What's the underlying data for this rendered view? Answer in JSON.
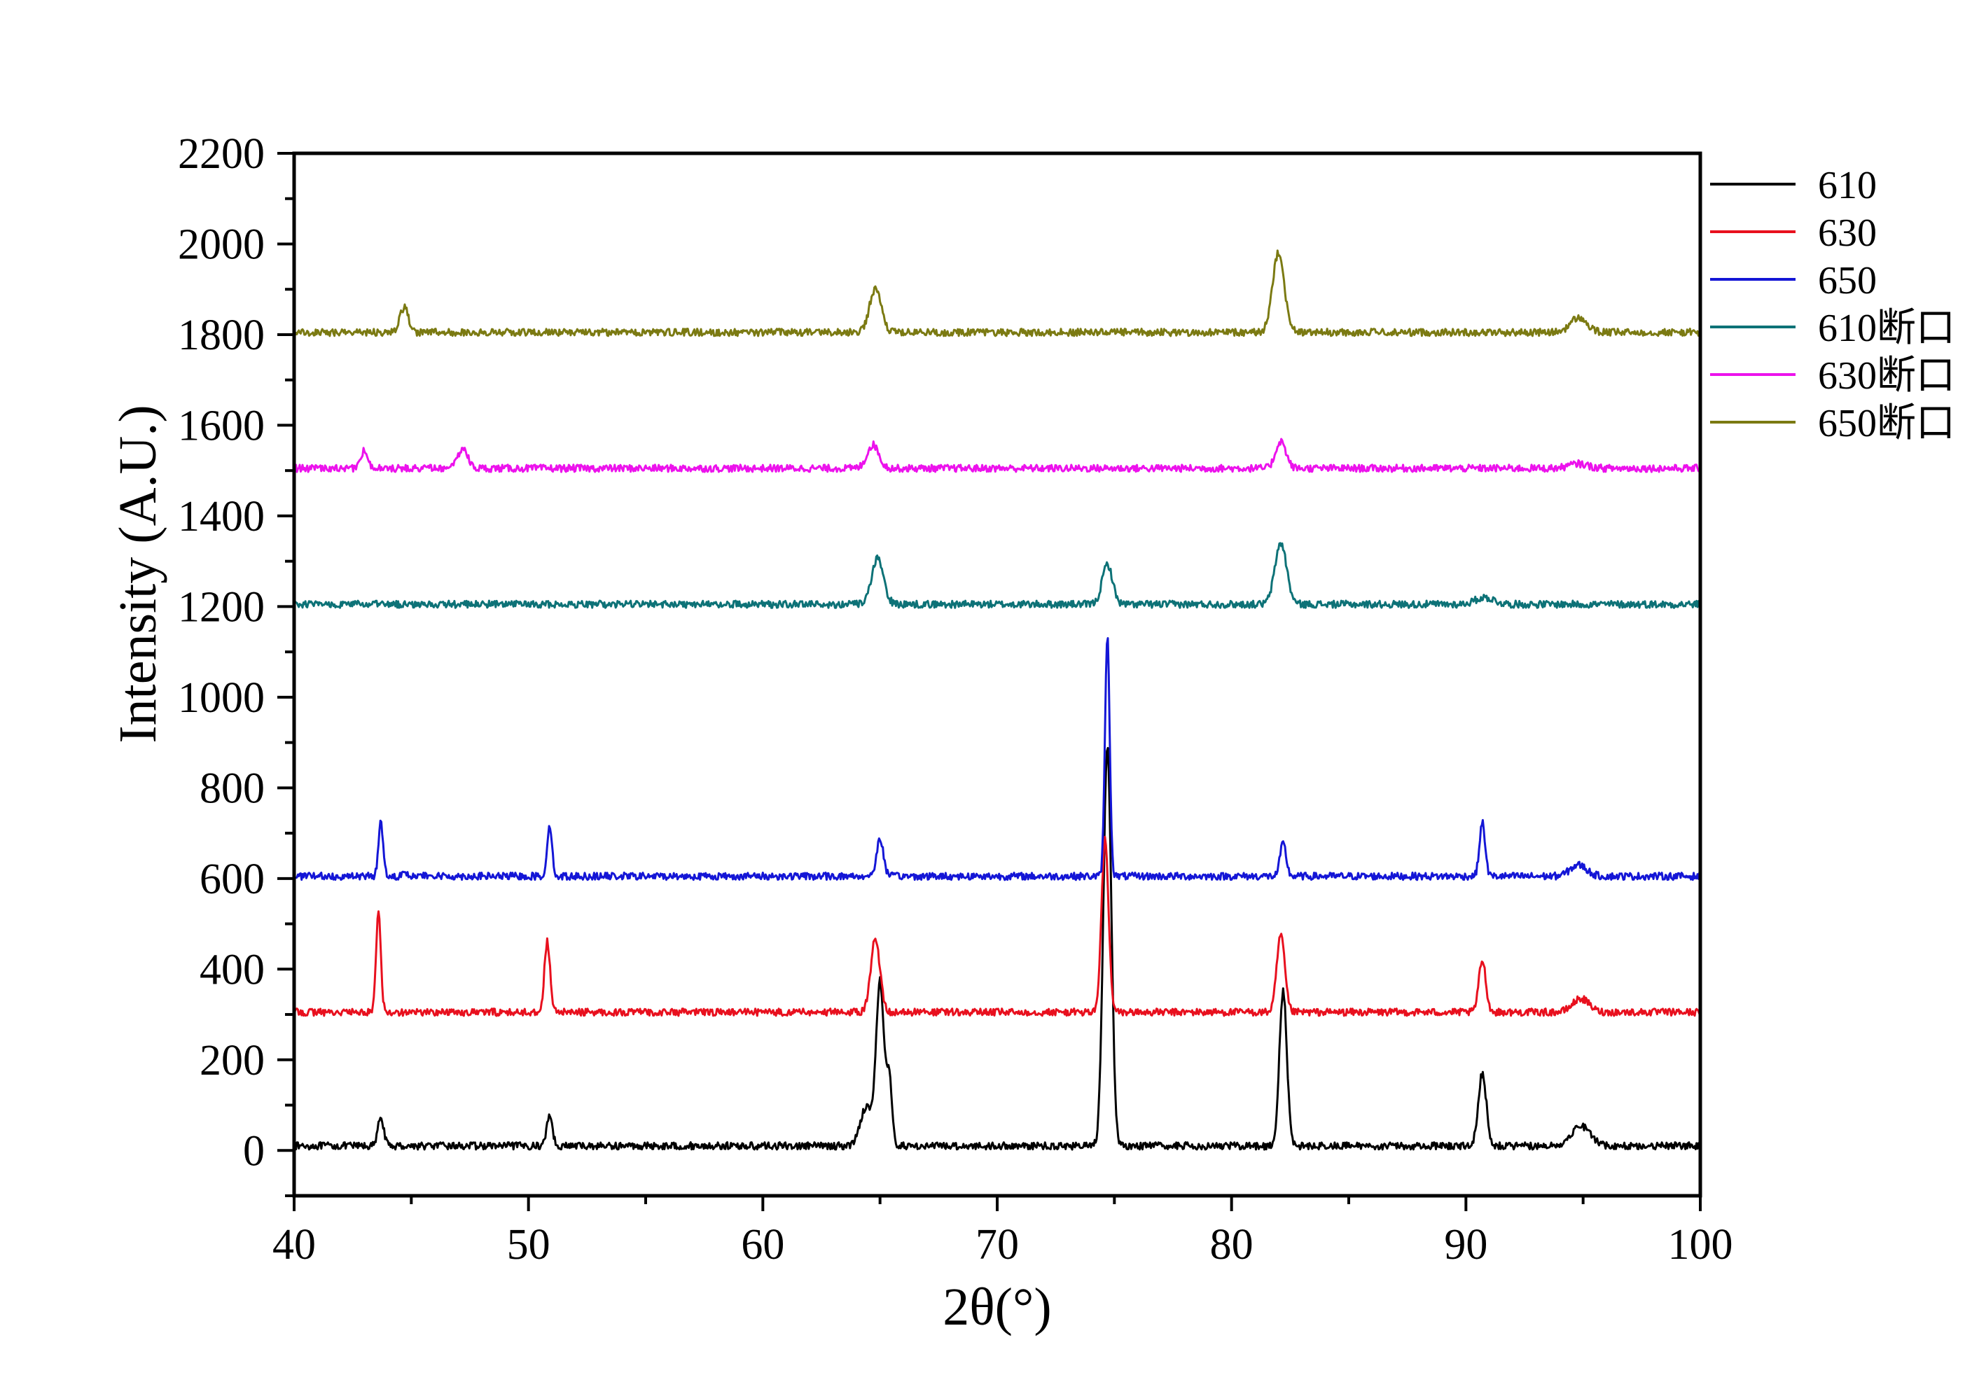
{
  "chart_data": {
    "type": "line",
    "title": "",
    "xlabel": "2θ(°)",
    "ylabel": "Intensity (A.U.)",
    "xlim": [
      40,
      100
    ],
    "ylim": [
      -100,
      2200
    ],
    "xticks": [
      40,
      50,
      60,
      70,
      80,
      90,
      100
    ],
    "yticks": [
      0,
      200,
      400,
      600,
      800,
      1000,
      1200,
      1400,
      1600,
      1800,
      2000,
      2200
    ],
    "grid": false,
    "legend_position": "top-right-outside",
    "series": [
      {
        "name": "610",
        "color": "#000000",
        "baseline": 10,
        "peaks": [
          [
            43.7,
            65,
            0.12
          ],
          [
            50.9,
            70,
            0.12
          ],
          [
            64.4,
            85,
            0.25
          ],
          [
            65.0,
            360,
            0.17
          ],
          [
            65.4,
            140,
            0.12
          ],
          [
            74.7,
            880,
            0.17
          ],
          [
            82.2,
            340,
            0.16
          ],
          [
            90.7,
            160,
            0.17
          ],
          [
            94.9,
            45,
            0.4
          ]
        ]
      },
      {
        "name": "630",
        "color": "#e8101e",
        "baseline": 305,
        "peaks": [
          [
            43.6,
            225,
            0.1
          ],
          [
            50.8,
            155,
            0.12
          ],
          [
            64.8,
            160,
            0.2
          ],
          [
            74.6,
            380,
            0.15
          ],
          [
            82.1,
            170,
            0.17
          ],
          [
            90.7,
            115,
            0.15
          ],
          [
            94.9,
            30,
            0.35
          ]
        ]
      },
      {
        "name": "650",
        "color": "#1416d6",
        "baseline": 605,
        "peaks": [
          [
            43.7,
            120,
            0.1
          ],
          [
            44.7,
            15,
            0.1
          ],
          [
            50.9,
            115,
            0.1
          ],
          [
            65.0,
            80,
            0.15
          ],
          [
            74.7,
            530,
            0.1
          ],
          [
            82.2,
            72,
            0.13
          ],
          [
            90.7,
            118,
            0.12
          ],
          [
            94.8,
            25,
            0.35
          ]
        ]
      },
      {
        "name": "610断口",
        "color": "#0d7277",
        "baseline": 1205,
        "peaks": [
          [
            64.9,
            100,
            0.25
          ],
          [
            74.7,
            88,
            0.22
          ],
          [
            82.1,
            135,
            0.25
          ],
          [
            90.8,
            15,
            0.4
          ]
        ]
      },
      {
        "name": "630断口",
        "color": "#ec12ec",
        "baseline": 1505,
        "peaks": [
          [
            43.0,
            40,
            0.15
          ],
          [
            47.2,
            45,
            0.2
          ],
          [
            64.7,
            52,
            0.25
          ],
          [
            82.1,
            60,
            0.22
          ],
          [
            94.8,
            10,
            0.4
          ]
        ]
      },
      {
        "name": "650断口",
        "color": "#7b7a12",
        "baseline": 1805,
        "peaks": [
          [
            44.7,
            55,
            0.18
          ],
          [
            64.8,
            95,
            0.25
          ],
          [
            82.0,
            175,
            0.25
          ],
          [
            94.8,
            32,
            0.35
          ]
        ]
      }
    ]
  }
}
